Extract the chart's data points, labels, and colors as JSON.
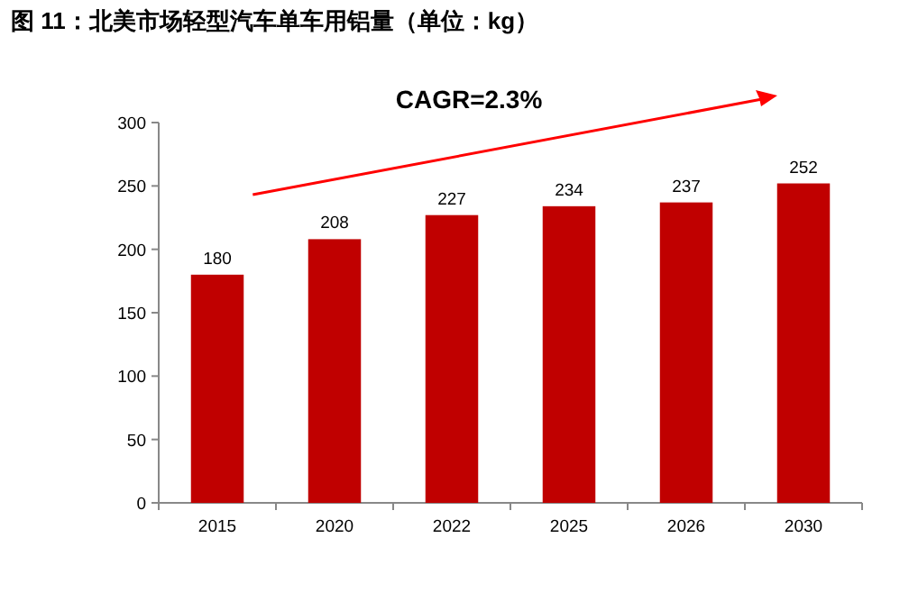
{
  "chart_data": {
    "type": "bar",
    "title": "图 11：北美市场轻型汽车单车用铝量（单位：kg）",
    "categories": [
      "2015",
      "2020",
      "2022",
      "2025",
      "2026",
      "2030"
    ],
    "values": [
      180,
      208,
      227,
      234,
      237,
      252
    ],
    "color": "#c00000",
    "ylim": [
      0,
      300
    ],
    "yticks": [
      0,
      50,
      100,
      150,
      200,
      250,
      300
    ],
    "data_labels": true,
    "grid": false,
    "annotations": [
      "CAGR=2.3%"
    ]
  }
}
